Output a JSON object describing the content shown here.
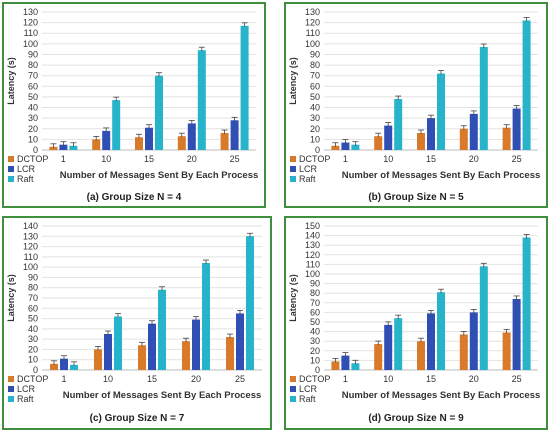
{
  "colors": {
    "DCTOP": "#d97a2b",
    "LCR": "#2f4fb5",
    "Raft": "#27b3c9",
    "frame": "#3f8f3f",
    "grid": "#e2e2e2"
  },
  "chart_data": [
    {
      "type": "bar",
      "caption": "(a) Group Size N = 4",
      "xlabel": "Number of Messages Sent By Each Process",
      "ylabel": "Latency (s)",
      "categories": [
        "1",
        "10",
        "15",
        "20",
        "25"
      ],
      "ylim": [
        0,
        130
      ],
      "ystep": 10,
      "series": [
        {
          "name": "DCTOP",
          "values": [
            3,
            10,
            12,
            13,
            16
          ]
        },
        {
          "name": "LCR",
          "values": [
            5,
            18,
            21,
            25,
            28
          ]
        },
        {
          "name": "Raft",
          "values": [
            4,
            47,
            70,
            94,
            117
          ]
        }
      ]
    },
    {
      "type": "bar",
      "caption": "(b) Group Size N = 5",
      "xlabel": "Number of Messages Sent By Each Process",
      "ylabel": "Latency (s)",
      "categories": [
        "1",
        "10",
        "15",
        "20",
        "25"
      ],
      "ylim": [
        0,
        130
      ],
      "ystep": 10,
      "series": [
        {
          "name": "DCTOP",
          "values": [
            4,
            13,
            16,
            20,
            21
          ]
        },
        {
          "name": "LCR",
          "values": [
            7,
            23,
            30,
            34,
            39
          ]
        },
        {
          "name": "Raft",
          "values": [
            5,
            48,
            72,
            97,
            122
          ]
        }
      ]
    },
    {
      "type": "bar",
      "caption": "(c) Group Size N = 7",
      "xlabel": "Number of Messages Sent By Each Process",
      "ylabel": "Latency (s)",
      "categories": [
        "1",
        "10",
        "15",
        "20",
        "25"
      ],
      "ylim": [
        0,
        140
      ],
      "ystep": 10,
      "series": [
        {
          "name": "DCTOP",
          "values": [
            6,
            20,
            24,
            28,
            32
          ]
        },
        {
          "name": "LCR",
          "values": [
            11,
            35,
            45,
            49,
            55
          ]
        },
        {
          "name": "Raft",
          "values": [
            5,
            52,
            78,
            104,
            130
          ]
        }
      ]
    },
    {
      "type": "bar",
      "caption": "(d) Group Size N = 9",
      "xlabel": "Number of Messages Sent By Each Process",
      "ylabel": "Latency (s)",
      "categories": [
        "1",
        "10",
        "15",
        "20",
        "25"
      ],
      "ylim": [
        0,
        150
      ],
      "ystep": 10,
      "series": [
        {
          "name": "DCTOP",
          "values": [
            9,
            27,
            30,
            37,
            39
          ]
        },
        {
          "name": "LCR",
          "values": [
            15,
            47,
            59,
            60,
            74
          ]
        },
        {
          "name": "Raft",
          "values": [
            7,
            54,
            81,
            108,
            138
          ]
        }
      ]
    }
  ]
}
